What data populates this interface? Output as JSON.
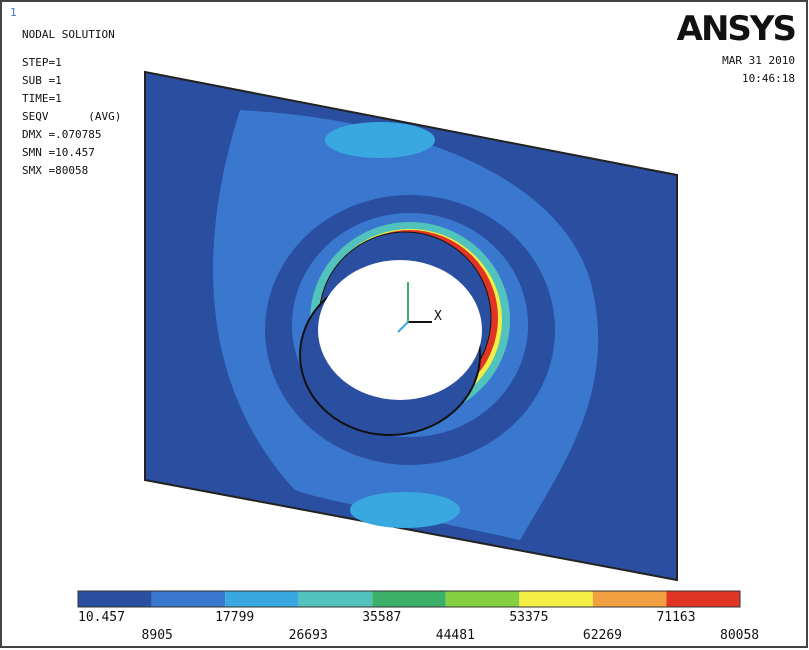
{
  "window_number": "1",
  "info": {
    "title": "NODAL SOLUTION",
    "lines": [
      "STEP=1",
      "SUB =1",
      "TIME=1",
      "SEQV      (AVG)",
      "DMX =.070785",
      "SMN =10.457",
      "SMX =80058"
    ]
  },
  "brand": {
    "logo": "ANSYS",
    "date": "MAR 31 2010",
    "time": "10:46:18"
  },
  "triad": {
    "x_label": "X"
  },
  "legend": {
    "colors": [
      "#2b4fa0",
      "#3a78d0",
      "#3aa8e0",
      "#52c2bc",
      "#3cb068",
      "#84d040",
      "#f2ee44",
      "#f0a040",
      "#e03424"
    ],
    "labels": [
      "10.457",
      "8905",
      "17799",
      "26693",
      "35587",
      "44481",
      "53375",
      "62269",
      "71163",
      "80058"
    ]
  }
}
